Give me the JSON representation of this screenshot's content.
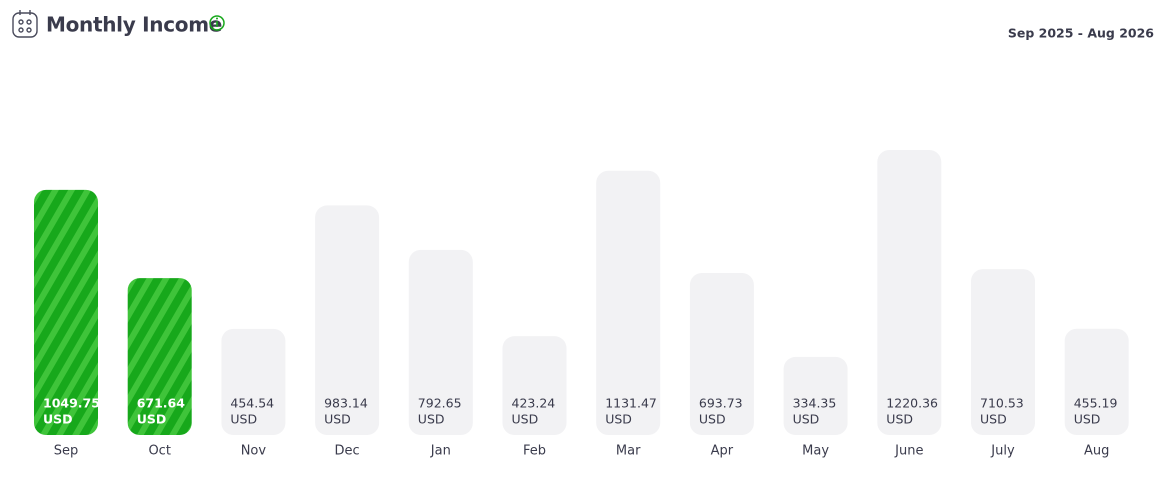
{
  "chart_data": {
    "type": "bar",
    "title": "Monthly Income",
    "date_range": "Sep 2025 - Aug 2026",
    "unit": "USD",
    "categories": [
      "Sep",
      "Oct",
      "Nov",
      "Dec",
      "Jan",
      "Feb",
      "Mar",
      "Apr",
      "May",
      "June",
      "July",
      "Aug"
    ],
    "values": [
      1049.75,
      671.64,
      454.54,
      983.14,
      792.65,
      423.24,
      1131.47,
      693.73,
      334.35,
      1220.36,
      710.53,
      455.19
    ],
    "colors": [
      "#17a81b",
      "#17a81b",
      "#f2f2f4",
      "#f2f2f4",
      "#f2f2f4",
      "#f2f2f4",
      "#f2f2f4",
      "#f2f2f4",
      "#f2f2f4",
      "#f2f2f4",
      "#f2f2f4",
      "#f2f2f4"
    ]
  }
}
